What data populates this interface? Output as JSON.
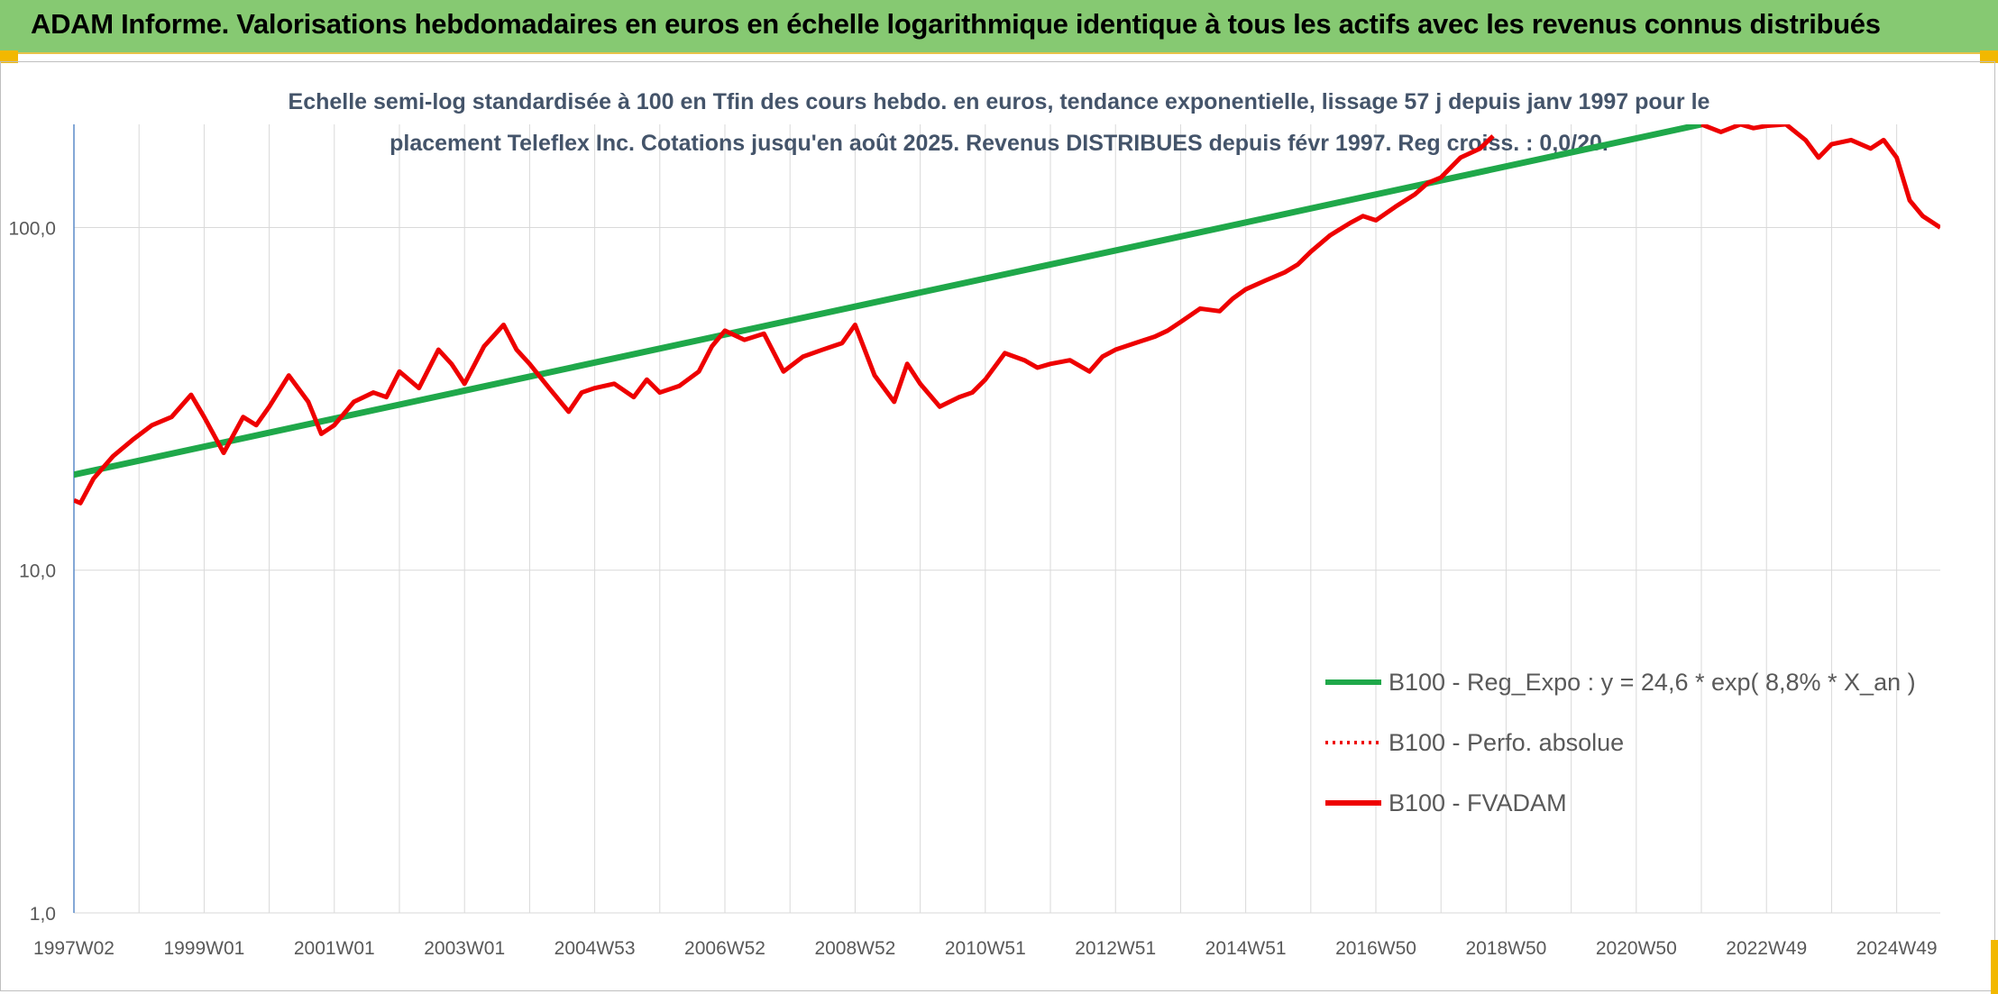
{
  "header": {
    "title": "ADAM Informe. Valorisations hebdomadaires en euros en échelle logarithmique identique à tous les actifs avec les revenus connus distribués"
  },
  "colors": {
    "banner": "#86c972",
    "accent": "#f2b800",
    "trend": "#1fa84a",
    "fvadam": "#ee0000",
    "grid": "#d9d9d9",
    "text": "#44546a"
  },
  "chart_data": {
    "type": "line",
    "title_line1": "Echelle semi-log standardisée à 100 en Tfin des cours hebdo. en euros, tendance exponentielle, lissage 57 j depuis janv 1997 pour le",
    "title_line2": "placement Teleflex Inc. Cotations jusqu'en août 2025. Revenus DISTRIBUES depuis févr 1997. Reg croiss. : 0,0/20.",
    "y_scale": "log",
    "ylim": [
      1,
      200
    ],
    "y_ticks": [
      1,
      10,
      100
    ],
    "y_tick_labels": [
      "1,0",
      "10,0",
      "100,0"
    ],
    "xlim": [
      1997.0,
      2025.67
    ],
    "x_ticks": [
      1997.0,
      1999.0,
      2001.0,
      2003.0,
      2005.0,
      2007.0,
      2009.0,
      2011.0,
      2013.0,
      2015.0,
      2017.0,
      2019.0,
      2021.0,
      2023.0,
      2025.0
    ],
    "x_tick_labels": [
      "1997W02",
      "1999W01",
      "2001W01",
      "2003W01",
      "2004W53",
      "2006W52",
      "2008W52",
      "2010W51",
      "2012W51",
      "2014W51",
      "2016W50",
      "2018W50",
      "2020W50",
      "2022W49",
      "2024W49"
    ],
    "grid": true,
    "legend_position": "bottom-right",
    "legend": [
      {
        "label": "B100 - Reg_Expo : y = 24,6 * exp( 8,8% *  X_an )",
        "style": "solid",
        "color": "#1fa84a"
      },
      {
        "label": "B100 - Perfo. absolue",
        "style": "dotted",
        "color": "#ee0000"
      },
      {
        "label": "B100 - FVADAM",
        "style": "solid",
        "color": "#ee0000"
      }
    ],
    "series": [
      {
        "name": "B100 - Reg_Expo : y = 24,6 * exp( 8,8% *  X_an )",
        "color": "#1fa84a",
        "x": [
          1997.0,
          2022.0
        ],
        "y": [
          19.0,
          200.0
        ]
      },
      {
        "name": "B100 - FVADAM",
        "color": "#ee0000",
        "x": [
          1997.0,
          1997.1,
          1997.3,
          1997.6,
          1997.9,
          1998.2,
          1998.5,
          1998.8,
          1999.0,
          1999.3,
          1999.6,
          1999.8,
          2000.0,
          2000.3,
          2000.6,
          2000.8,
          2001.0,
          2001.3,
          2001.6,
          2001.8,
          2002.0,
          2002.3,
          2002.6,
          2002.8,
          2003.0,
          2003.3,
          2003.6,
          2003.8,
          2004.0,
          2004.3,
          2004.6,
          2004.8,
          2005.0,
          2005.3,
          2005.6,
          2005.8,
          2006.0,
          2006.3,
          2006.6,
          2006.8,
          2007.0,
          2007.3,
          2007.6,
          2007.9,
          2008.2,
          2008.5,
          2008.8,
          2009.0,
          2009.3,
          2009.6,
          2009.8,
          2010.0,
          2010.3,
          2010.6,
          2010.8,
          2011.0,
          2011.3,
          2011.6,
          2011.8,
          2012.0,
          2012.3,
          2012.6,
          2012.8,
          2013.0,
          2013.3,
          2013.6,
          2013.8,
          2014.0,
          2014.3,
          2014.6,
          2014.8,
          2015.0,
          2015.3,
          2015.6,
          2015.8,
          2016.0,
          2016.3,
          2016.6,
          2016.8,
          2017.0,
          2017.3,
          2017.6,
          2017.8,
          2018.0,
          2018.3,
          2018.6,
          2018.8
        ],
        "y": [
          16.0,
          15.7,
          18.5,
          21.5,
          24.0,
          26.5,
          28.0,
          32.5,
          28.0,
          22.0,
          28.0,
          26.5,
          30.0,
          37.0,
          31.0,
          25.0,
          26.5,
          31.0,
          33.0,
          32.0,
          38.0,
          34.0,
          44.0,
          40.0,
          35.0,
          45.0,
          52.0,
          44.0,
          40.0,
          34.0,
          29.0,
          33.0,
          34.0,
          35.0,
          32.0,
          36.0,
          33.0,
          34.5,
          38.0,
          45.0,
          50.0,
          47.0,
          49.0,
          38.0,
          42.0,
          44.0,
          46.0,
          52.0,
          37.0,
          31.0,
          40.0,
          35.0,
          30.0,
          32.0,
          33.0,
          36.0,
          43.0,
          41.0,
          39.0,
          40.0,
          41.0,
          38.0,
          42.0,
          44.0,
          46.0,
          48.0,
          50.0,
          53.0,
          58.0,
          57.0,
          62.0,
          66.0,
          70.0,
          74.0,
          78.0,
          85.0,
          95.0,
          103.0,
          108.0,
          105.0,
          115.0,
          125.0,
          135.0,
          140.0,
          160.0,
          170.0,
          185.0
        ],
        "x2": [
          2022.0,
          2022.3,
          2022.6,
          2022.8,
          2023.0,
          2023.3,
          2023.6,
          2023.8,
          2024.0,
          2024.3,
          2024.6,
          2024.8,
          2025.0,
          2025.2,
          2025.4,
          2025.67
        ],
        "y2": [
          200.0,
          190.0,
          200.0,
          195.0,
          198.0,
          200.0,
          180.0,
          160.0,
          175.0,
          180.0,
          170.0,
          180.0,
          160.0,
          120.0,
          108.0,
          100.0
        ]
      }
    ]
  }
}
